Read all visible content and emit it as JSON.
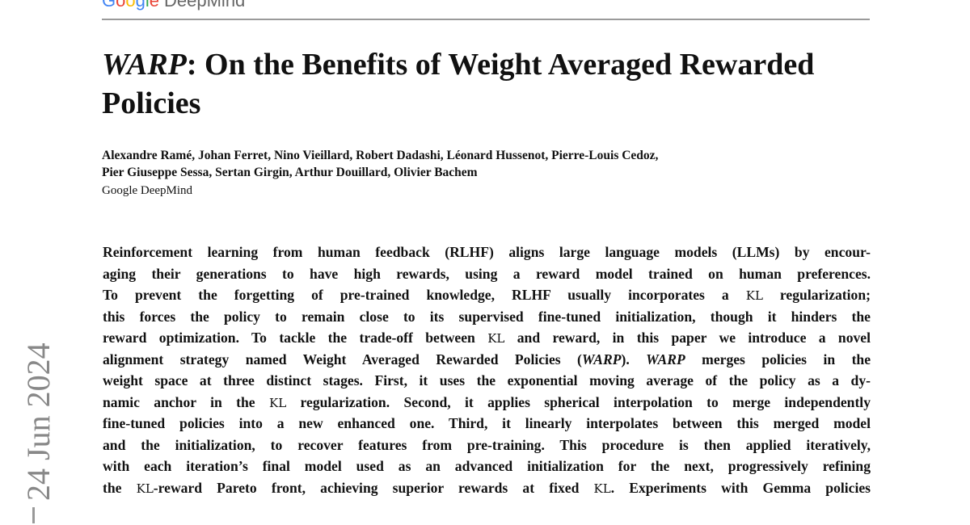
{
  "header": {
    "logo_google": "Google",
    "logo_deepmind": "DeepMind"
  },
  "title": {
    "italic": "WARP",
    "rest": ": On the Benefits of Weight Averaged Rewarded Policies"
  },
  "authors": {
    "line1": "Alexandre Ramé, Johan Ferret, Nino Vieillard, Robert Dadashi, Léonard Hussenot, Pierre-Louis Cedoz,",
    "line2": "Pier Giuseppe Sessa, Sertan Girgin, Arthur Douillard, Olivier Bachem",
    "affiliation": "Google DeepMind"
  },
  "side_stamp": "24 Jun 2024",
  "abstract": [
    [
      {
        "t": "Reinforcement learning from human feedback (RLHF) aligns large language models (LLMs) by encour-"
      }
    ],
    [
      {
        "t": "aging their generations to have high rewards, using a reward model trained on human preferences."
      }
    ],
    [
      {
        "t": "To prevent the forgetting of pre-trained knowledge, RLHF usually incorporates a "
      },
      {
        "t": "KL",
        "s": "kl"
      },
      {
        "t": " regularization;"
      }
    ],
    [
      {
        "t": "this forces the policy to remain close to its supervised fine-tuned initialization, though it hinders the"
      }
    ],
    [
      {
        "t": "reward optimization. To tackle the trade-off between "
      },
      {
        "t": "KL",
        "s": "kl"
      },
      {
        "t": " and reward, in this paper we introduce a novel"
      }
    ],
    [
      {
        "t": "alignment strategy named Weight Averaged Rewarded Policies ("
      },
      {
        "t": "WARP",
        "s": "i"
      },
      {
        "t": "). "
      },
      {
        "t": "WARP",
        "s": "i"
      },
      {
        "t": " merges policies in the"
      }
    ],
    [
      {
        "t": "weight space at three distinct stages. First, it uses the exponential moving average of the policy as a dy-"
      }
    ],
    [
      {
        "t": "namic anchor in the "
      },
      {
        "t": "KL",
        "s": "kl"
      },
      {
        "t": " regularization. Second, it applies spherical interpolation to merge independently"
      }
    ],
    [
      {
        "t": "fine-tuned policies into a new enhanced one. Third, it linearly interpolates between this merged model"
      }
    ],
    [
      {
        "t": "and the initialization, to recover features from pre-training. This procedure is then applied iteratively,"
      }
    ],
    [
      {
        "t": "with each iteration’s final model used as an advanced initialization for the next, progressively refining"
      }
    ],
    [
      {
        "t": "the "
      },
      {
        "t": "KL",
        "s": "kl"
      },
      {
        "t": "-reward Pareto front, achieving superior rewards at fixed "
      },
      {
        "t": "KL",
        "s": "kl"
      },
      {
        "t": ". Experiments with Gemma policies"
      }
    ]
  ]
}
